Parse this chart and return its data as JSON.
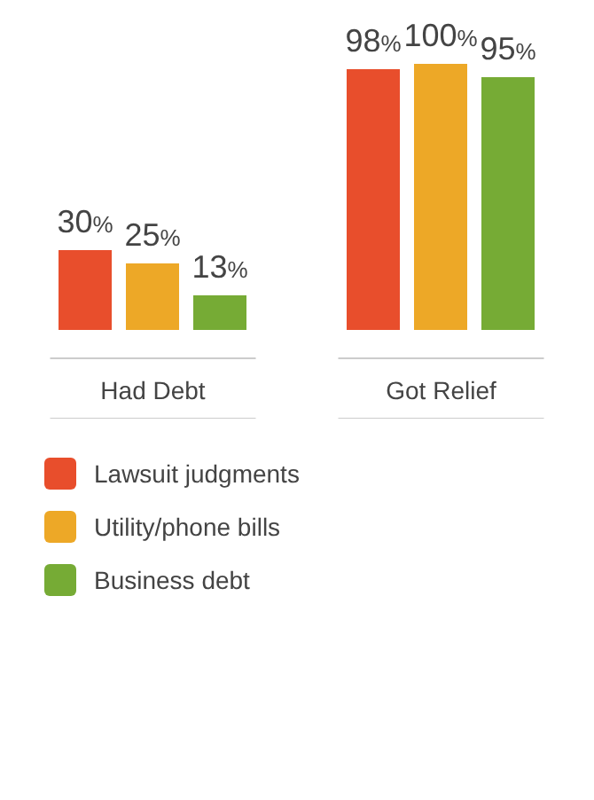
{
  "chart_data": {
    "type": "bar",
    "categories": [
      "Had Debt",
      "Got Relief"
    ],
    "series": [
      {
        "name": "Lawsuit judgments",
        "color": "#e84e2c",
        "values": [
          30,
          98
        ],
        "value_labels": [
          "30%",
          "98%"
        ]
      },
      {
        "name": "Utility/phone bills",
        "color": "#eda827",
        "values": [
          25,
          100
        ],
        "value_labels": [
          "25%",
          "100%"
        ]
      },
      {
        "name": "Business debt",
        "color": "#76ab35",
        "values": [
          13,
          95
        ],
        "value_labels": [
          "13%",
          "95%"
        ]
      }
    ],
    "tick_labels": "x",
    "legend": "bottom left",
    "grid": false
  }
}
